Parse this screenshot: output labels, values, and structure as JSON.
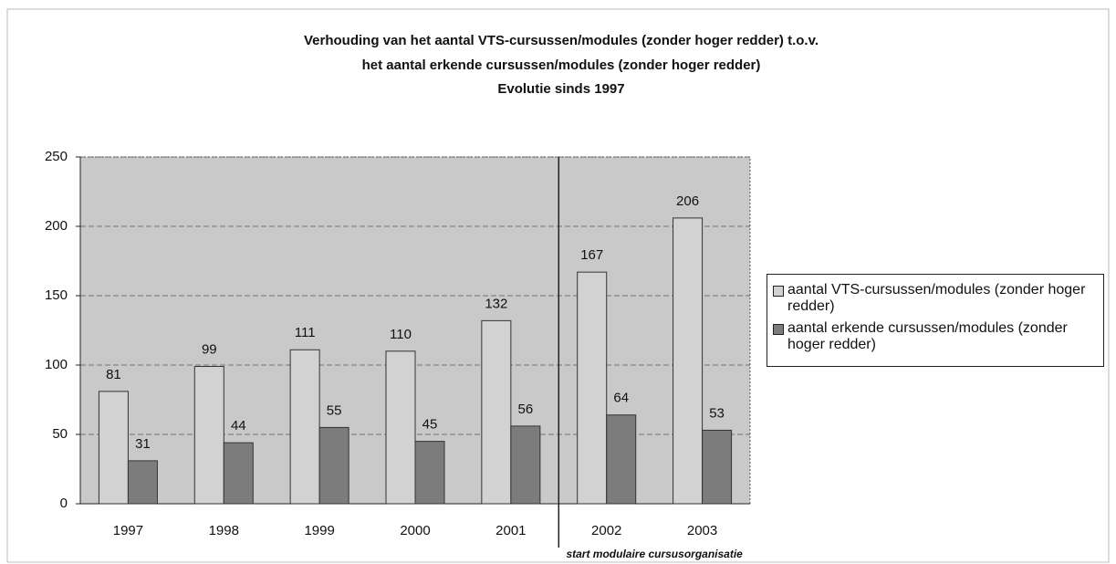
{
  "chart_data": {
    "type": "bar",
    "title": [
      "Verhouding van het aantal VTS-cursussen/modules (zonder hoger redder) t.o.v.",
      "het aantal erkende cursussen/modules (zonder hoger redder)",
      "Evolutie sinds 1997"
    ],
    "categories": [
      "1997",
      "1998",
      "1999",
      "2000",
      "2001",
      "2002",
      "2003"
    ],
    "series": [
      {
        "name": "aantal VTS-cursussen/modules (zonder hoger redder)",
        "color": "#d2d2d2",
        "values": [
          81,
          99,
          111,
          110,
          132,
          167,
          206
        ]
      },
      {
        "name": "aantal erkende cursussen/modules (zonder hoger redder)",
        "color": "#7c7c7c",
        "values": [
          31,
          44,
          55,
          45,
          56,
          64,
          53
        ]
      }
    ],
    "ylim": [
      0,
      250
    ],
    "yticks": [
      0,
      50,
      100,
      150,
      200,
      250
    ],
    "grid": true,
    "legend": "right",
    "annotation": "start modulaire cursusorganisatie"
  }
}
